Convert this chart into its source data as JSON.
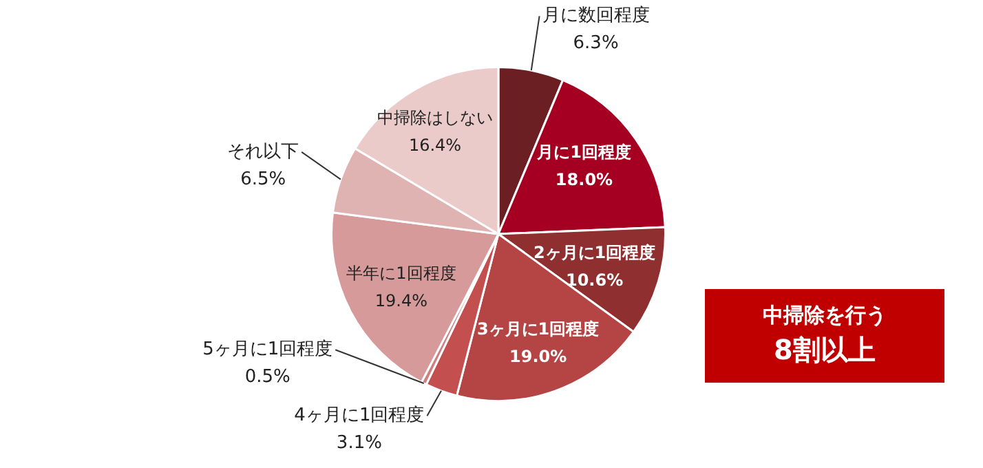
{
  "chart_data": {
    "type": "pie",
    "categories": [
      "月に数回程度",
      "月に1回程度",
      "2ヶ月に1回程度",
      "3ヶ月に1回程度",
      "4ヶ月に1回程度",
      "5ヶ月に1回程度",
      "半年に1回程度",
      "それ以下",
      "中掃除はしない"
    ],
    "values": [
      6.3,
      18.0,
      10.6,
      19.0,
      3.1,
      0.5,
      19.4,
      6.5,
      16.4
    ],
    "colors": [
      "#6b1f22",
      "#a50021",
      "#8f2f30",
      "#b54545",
      "#c44f4f",
      "#cf7f7f",
      "#d69a9a",
      "#e0b3b3",
      "#ebcaca"
    ],
    "value_labels": [
      "6.3%",
      "18.0%",
      "10.6%",
      "19.0%",
      "3.1%",
      "0.5%",
      "19.4%",
      "6.5%",
      "16.4%"
    ],
    "annotations": [
      "中掃除を行う",
      "8割以上"
    ]
  }
}
